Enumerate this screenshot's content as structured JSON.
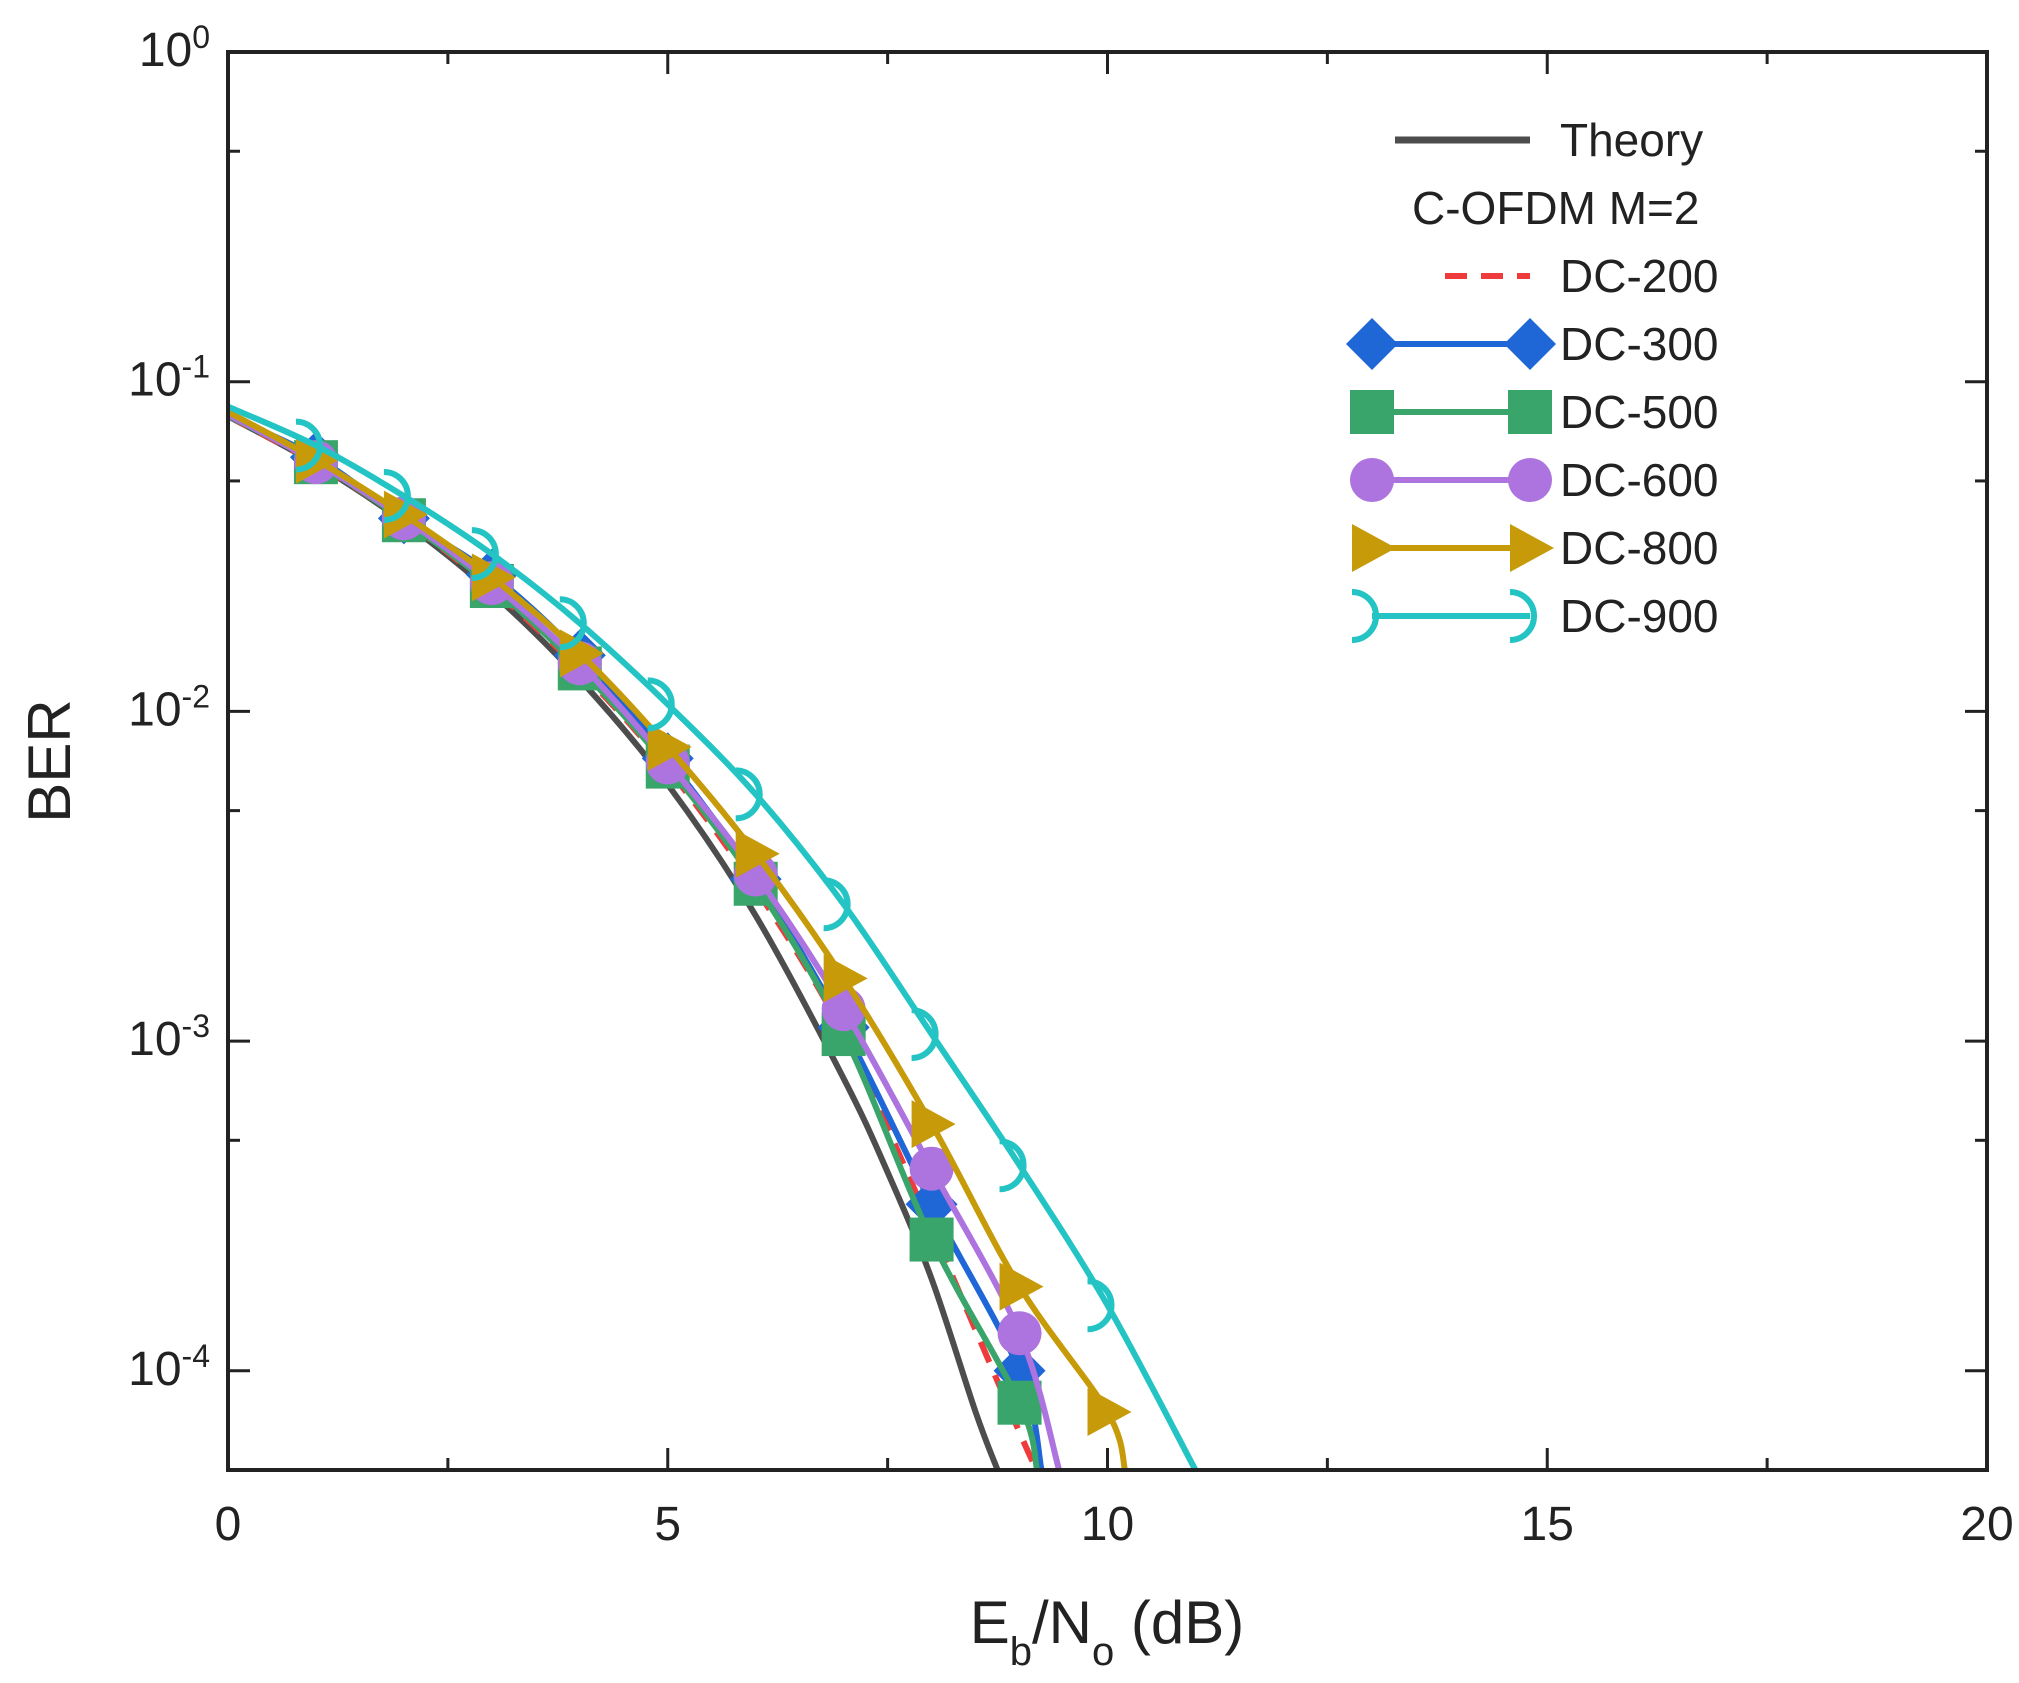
{
  "chart_data": {
    "type": "line",
    "y_scale": "log",
    "xlabel": {
      "main": "E",
      "sub1": "b",
      "mid": "/N",
      "sub2": "o",
      "tail": " (dB)"
    },
    "ylabel": "BER",
    "xlim": [
      0,
      20
    ],
    "ylim": [
      5e-05,
      1
    ],
    "x_ticks": [
      {
        "value": 0,
        "label": "0"
      },
      {
        "value": 5,
        "label": "5"
      },
      {
        "value": 10,
        "label": "10"
      },
      {
        "value": 15,
        "label": "15"
      },
      {
        "value": 20,
        "label": "20"
      }
    ],
    "y_ticks": [
      {
        "value": 1,
        "base": "10",
        "exp": "0"
      },
      {
        "value": 0.1,
        "base": "10",
        "exp": "-1"
      },
      {
        "value": 0.01,
        "base": "10",
        "exp": "-2"
      },
      {
        "value": 0.001,
        "base": "10",
        "exp": "-3"
      },
      {
        "value": 0.0001,
        "base": "10",
        "exp": "-4"
      }
    ],
    "legend_position": "top-right",
    "legend_subtitle": "C-OFDM M=2",
    "series": [
      {
        "name": "Theory",
        "color": "#4d4d4d",
        "marker": "none",
        "dash": "solid",
        "x": [
          0,
          1,
          2,
          3,
          4,
          5,
          6,
          7,
          7.5,
          8,
          8.5,
          8.75
        ],
        "y": [
          0.0786,
          0.0563,
          0.0375,
          0.0229,
          0.0125,
          0.006,
          0.0024,
          0.00077,
          0.0004,
          0.00019,
          7.5e-05,
          5e-05
        ]
      },
      {
        "name": "DC-200",
        "color": "#ef3b3b",
        "marker": "none",
        "dash": "dashed",
        "x": [
          0,
          1,
          2,
          3,
          4,
          5,
          6,
          7,
          8,
          9,
          9.2
        ],
        "y": [
          0.0786,
          0.0565,
          0.038,
          0.0236,
          0.0133,
          0.0067,
          0.0029,
          0.00105,
          0.00027,
          6.5e-05,
          5e-05
        ]
      },
      {
        "name": "DC-300",
        "color": "#1f66d6",
        "marker": "diamond",
        "dash": "solid",
        "x": [
          0,
          1,
          2,
          3,
          4,
          5,
          6,
          7,
          8,
          9,
          9.25
        ],
        "y": [
          0.0786,
          0.059,
          0.0385,
          0.026,
          0.0148,
          0.0072,
          0.0031,
          0.0011,
          0.00032,
          0.0001,
          5e-05
        ]
      },
      {
        "name": "DC-500",
        "color": "#3aa56b",
        "marker": "square",
        "dash": "solid",
        "x": [
          0,
          1,
          2,
          3,
          4,
          5,
          6,
          7,
          8,
          9,
          9.2
        ],
        "y": [
          0.079,
          0.057,
          0.038,
          0.024,
          0.0135,
          0.0068,
          0.003,
          0.00105,
          0.00025,
          8e-05,
          5e-05
        ]
      },
      {
        "name": "DC-600",
        "color": "#ad73de",
        "marker": "circle",
        "dash": "solid",
        "x": [
          0,
          1,
          2,
          3,
          4,
          5,
          6,
          7,
          8,
          9,
          9.45
        ],
        "y": [
          0.0795,
          0.057,
          0.0385,
          0.0245,
          0.014,
          0.007,
          0.0032,
          0.00125,
          0.00041,
          0.00013,
          5e-05
        ]
      },
      {
        "name": "DC-800",
        "color": "#c79a0a",
        "marker": "triangle-right",
        "dash": "solid",
        "x": [
          0,
          1,
          2,
          3,
          4,
          5,
          6,
          7,
          8,
          9,
          10,
          10.2
        ],
        "y": [
          0.081,
          0.058,
          0.0395,
          0.0255,
          0.015,
          0.0078,
          0.0037,
          0.00155,
          0.00056,
          0.00018,
          7.5e-05,
          5e-05
        ]
      },
      {
        "name": "DC-900",
        "color": "#24c4c4",
        "marker": "hook",
        "dash": "solid",
        "x": [
          0,
          1,
          2,
          3,
          4,
          5,
          6,
          7,
          8,
          9,
          10,
          11
        ],
        "y": [
          0.084,
          0.064,
          0.045,
          0.03,
          0.0185,
          0.0105,
          0.0056,
          0.0026,
          0.00105,
          0.00042,
          0.000158,
          5e-05
        ]
      }
    ]
  }
}
